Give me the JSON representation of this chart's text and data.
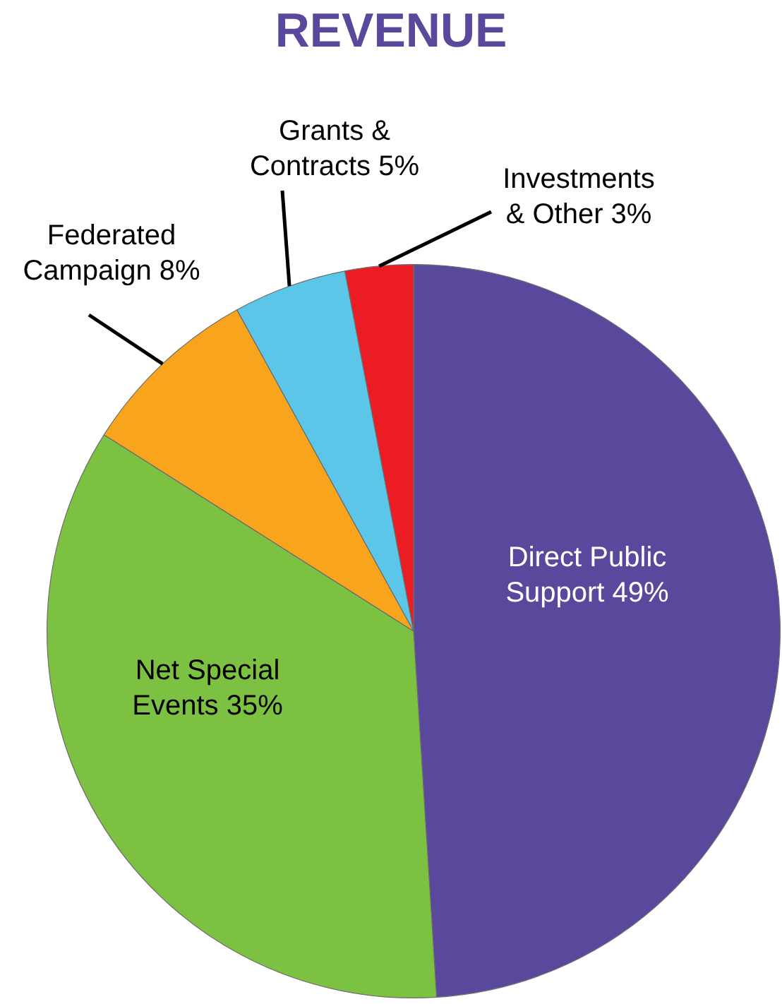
{
  "chart_data": {
    "type": "pie",
    "title": "REVENUE",
    "categories": [
      "Direct Public Support",
      "Net Special Events",
      "Federated Campaign",
      "Grants & Contracts",
      "Investments & Other"
    ],
    "values": [
      49,
      35,
      8,
      5,
      3
    ],
    "value_labels": [
      "49%",
      "35%",
      "8%",
      "5%",
      "3%"
    ],
    "colors": [
      "#5a489d",
      "#7cc142",
      "#f8a51d",
      "#5bc6e8",
      "#ec1c24"
    ],
    "legend": false
  }
}
